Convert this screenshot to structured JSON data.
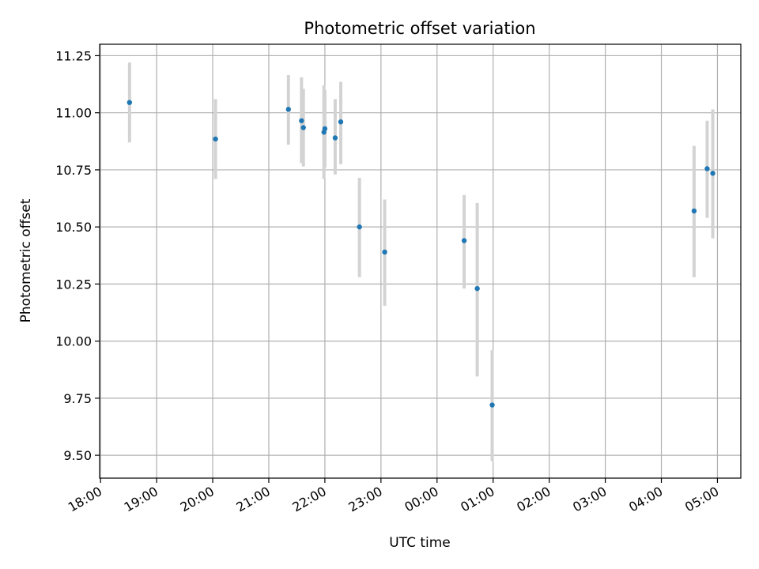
{
  "chart_data": {
    "type": "scatter",
    "title": "Photometric offset variation",
    "xlabel": "UTC time",
    "ylabel": "Photometric offset",
    "x_tick_labels": [
      "18:00",
      "19:00",
      "20:00",
      "21:00",
      "22:00",
      "23:00",
      "00:00",
      "01:00",
      "02:00",
      "03:00",
      "04:00",
      "05:00"
    ],
    "y_tick_values": [
      9.5,
      9.75,
      10.0,
      10.25,
      10.5,
      10.75,
      11.0,
      11.25
    ],
    "y_tick_labels": [
      "9.50",
      "9.75",
      "10.00",
      "10.25",
      "10.50",
      "10.75",
      "11.00",
      "11.25"
    ],
    "xlim": [
      "17:59",
      "05:25"
    ],
    "ylim": [
      9.4,
      11.3
    ],
    "grid": true,
    "colors": {
      "point": "#1f77b4",
      "errorbar": "#d3d3d3",
      "grid": "#b0b0b0"
    },
    "points": [
      {
        "x": "18:31",
        "y": 11.045,
        "lo": 10.87,
        "hi": 11.22
      },
      {
        "x": "20:03",
        "y": 10.885,
        "lo": 10.71,
        "hi": 11.06
      },
      {
        "x": "21:21",
        "y": 11.015,
        "lo": 10.86,
        "hi": 11.165
      },
      {
        "x": "21:35",
        "y": 10.965,
        "lo": 10.78,
        "hi": 11.155
      },
      {
        "x": "21:37",
        "y": 10.935,
        "lo": 10.765,
        "hi": 11.105
      },
      {
        "x": "21:59",
        "y": 10.915,
        "lo": 10.71,
        "hi": 11.12
      },
      {
        "x": "22:00",
        "y": 10.93,
        "lo": 10.76,
        "hi": 11.1
      },
      {
        "x": "22:11",
        "y": 10.89,
        "lo": 10.73,
        "hi": 11.06
      },
      {
        "x": "22:17",
        "y": 10.96,
        "lo": 10.775,
        "hi": 11.135
      },
      {
        "x": "22:37",
        "y": 10.5,
        "lo": 10.28,
        "hi": 10.715
      },
      {
        "x": "23:04",
        "y": 10.39,
        "lo": 10.155,
        "hi": 10.62
      },
      {
        "x": "00:29",
        "y": 10.44,
        "lo": 10.23,
        "hi": 10.64
      },
      {
        "x": "00:43",
        "y": 10.23,
        "lo": 9.845,
        "hi": 10.605
      },
      {
        "x": "00:59",
        "y": 9.72,
        "lo": 9.475,
        "hi": 9.96
      },
      {
        "x": "04:35",
        "y": 10.57,
        "lo": 10.28,
        "hi": 10.855
      },
      {
        "x": "04:49",
        "y": 10.755,
        "lo": 10.54,
        "hi": 10.965
      },
      {
        "x": "04:55",
        "y": 10.735,
        "lo": 10.45,
        "hi": 11.015
      }
    ]
  }
}
